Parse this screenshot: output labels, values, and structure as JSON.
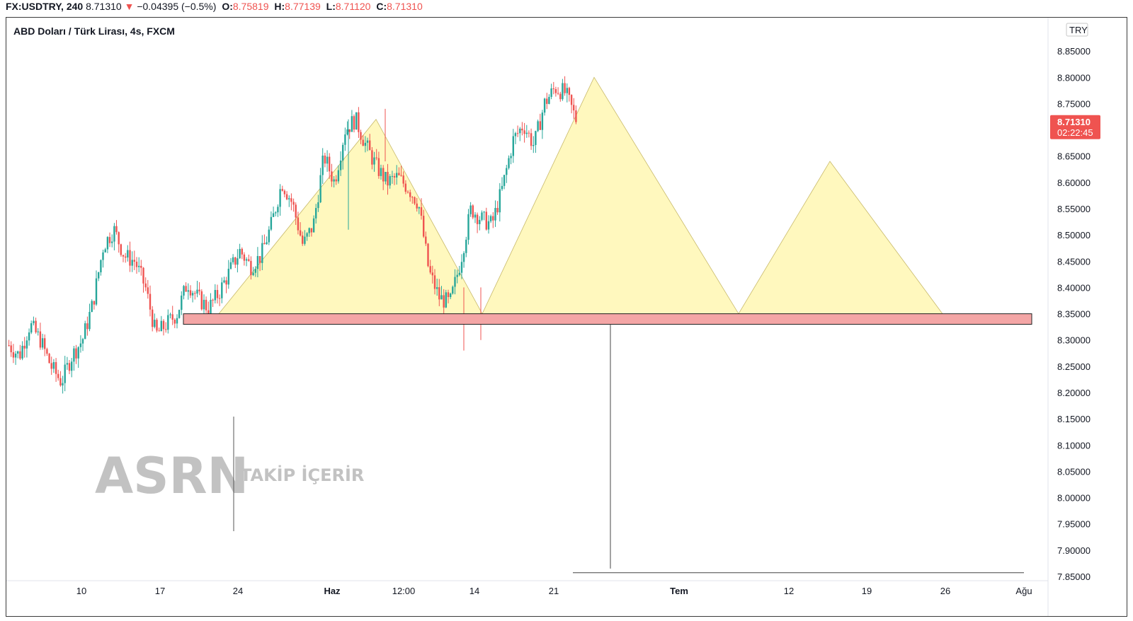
{
  "header": {
    "symbol": "FX:USDTRY, 240",
    "last": "8.71310",
    "change": "−0.04395 (−0.5%)",
    "o_label": "O:",
    "o_value": "8.75819",
    "h_label": "H:",
    "h_value": "8.77139",
    "l_label": "L:",
    "l_value": "8.71120",
    "c_label": "C:",
    "c_value": "8.71310"
  },
  "chart_data": {
    "type": "candlestick",
    "title": "ABD Doları / Türk Lirası, 4s, FXCM",
    "currency": "TRY",
    "ylim": [
      7.85,
      8.9
    ],
    "y_ticks": [
      "8.85000",
      "8.80000",
      "8.75000",
      "8.70000",
      "8.65000",
      "8.60000",
      "8.55000",
      "8.50000",
      "8.45000",
      "8.40000",
      "8.35000",
      "8.30000",
      "8.25000",
      "8.20000",
      "8.15000",
      "8.10000",
      "8.05000",
      "8.00000",
      "7.95000",
      "7.90000",
      "7.85000"
    ],
    "x_ticks": [
      {
        "label": "10",
        "bold": false
      },
      {
        "label": "17",
        "bold": false
      },
      {
        "label": "24",
        "bold": false
      },
      {
        "label": "Haz",
        "bold": true
      },
      {
        "label": "12:00",
        "bold": false
      },
      {
        "label": "14",
        "bold": false
      },
      {
        "label": "21",
        "bold": false
      },
      {
        "label": "Tem",
        "bold": true
      },
      {
        "label": "12",
        "bold": false
      },
      {
        "label": "19",
        "bold": false
      },
      {
        "label": "26",
        "bold": false
      },
      {
        "label": "Ağu",
        "bold": false
      }
    ],
    "price_label": {
      "value": "8.71310",
      "countdown": "02:22:45"
    },
    "colors": {
      "up": "#26a69a",
      "down": "#ef5350",
      "triangle_fill": "#fff7b3",
      "zone_fill": "#f4a6a6"
    },
    "price_path": [
      8.29,
      8.27,
      8.33,
      8.3,
      8.25,
      8.22,
      8.27,
      8.3,
      8.37,
      8.48,
      8.51,
      8.46,
      8.45,
      8.4,
      8.31,
      8.33,
      8.35,
      8.41,
      8.38,
      8.36,
      8.39,
      8.43,
      8.47,
      8.44,
      8.46,
      8.52,
      8.6,
      8.56,
      8.48,
      8.52,
      8.65,
      8.6,
      8.7,
      8.72,
      8.67,
      8.63,
      8.6,
      8.61,
      8.59,
      8.56,
      8.43,
      8.38,
      8.37,
      8.45,
      8.55,
      8.53,
      8.52,
      8.59,
      8.68,
      8.71,
      8.67,
      8.75,
      8.78,
      8.77,
      8.72
    ],
    "support_zone": [
      8.33,
      8.35
    ],
    "shapes": [
      {
        "type": "triangle",
        "points": [
          [
            "May 24",
            8.35
          ],
          [
            "Jun 5",
            8.72
          ],
          [
            "Jun 14",
            8.35
          ]
        ]
      },
      {
        "type": "triangle",
        "points": [
          [
            "Jun 14",
            8.35
          ],
          [
            "Jun 23",
            8.8
          ],
          [
            "Jul 9",
            8.35
          ]
        ]
      },
      {
        "type": "triangle",
        "points": [
          [
            "Jul 9",
            8.35
          ],
          [
            "Jul 15",
            8.64
          ],
          [
            "Jul 26",
            8.35
          ]
        ]
      }
    ]
  },
  "watermark": {
    "brand": "ASRN",
    "tagline": "TAKİP İÇERİR"
  }
}
